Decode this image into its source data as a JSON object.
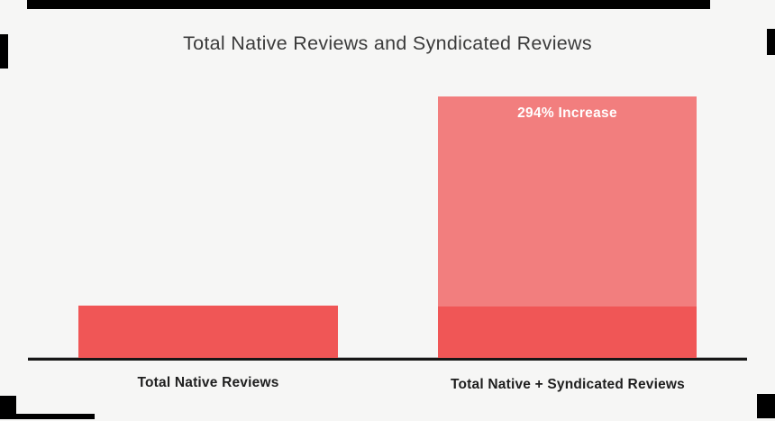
{
  "title": "Total Native Reviews and Syndicated Reviews",
  "chart_data": {
    "type": "bar",
    "categories": [
      "Total Native Reviews",
      "Total Native + Syndicated Reviews"
    ],
    "series": [
      {
        "name": "Native Reviews",
        "values": [
          100,
          100
        ]
      },
      {
        "name": "Syndicated Reviews",
        "values": [
          0,
          294
        ]
      }
    ],
    "stacked": true,
    "annotations": [
      {
        "text": "294% Increase",
        "target": "Total Native + Syndicated Reviews"
      }
    ],
    "title": "Total Native Reviews and Syndicated Reviews",
    "xlabel": "",
    "ylabel": "",
    "legend": false,
    "gridlines": false,
    "y_axis_visible": false,
    "x_axis_line": true
  },
  "bars": {
    "left_label": "Total Native Reviews",
    "right_label": "Total Native + Syndicated Reviews",
    "annotation": "294% Increase"
  },
  "colors": {
    "background": "#f6f6f5",
    "bar_primary": "#f05656",
    "bar_secondary": "#f27e7e",
    "annotation_text": "#ffffff",
    "title_text": "#3b3b3b",
    "label_text": "#1e1e1e",
    "axis_line": "#171717",
    "edge_artifact": "#000000"
  }
}
